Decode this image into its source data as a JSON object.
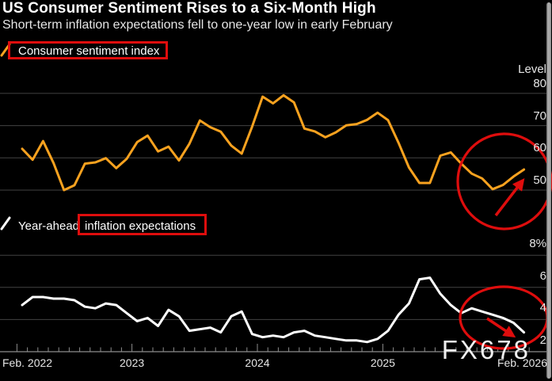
{
  "header": {
    "title": "US Consumer Sentiment Rises to a Six-Month High",
    "subtitle": "Short-term inflation expectations fell to one-year low in early February"
  },
  "legends": {
    "sentiment": {
      "label": "Consumer sentiment index"
    },
    "inflation": {
      "prefix": "Year-ahead",
      "boxed": "inflation expectations"
    }
  },
  "watermark": "FX678",
  "colors": {
    "background": "#000000",
    "sentiment_line": "#F9A21F",
    "inflation_line": "#FFFFFF",
    "grid": "#424242",
    "axis": "#8C8C8C",
    "annotation_red": "#DE0D0D",
    "text_primary": "#FFFFFF",
    "text_secondary": "#E6E6E6",
    "scrollbar": "#9A9A9A"
  },
  "chart_data": {
    "type": "line",
    "layout": "two stacked panels sharing one monthly x-axis",
    "grid": "horizontal gridlines only, black background",
    "legend_position": "above each panel",
    "x_tick_labels": [
      "Feb. 2022",
      "2023",
      "2024",
      "2025",
      "Feb. 2026"
    ],
    "categories": [
      "Feb 2022",
      "Mar 2022",
      "Apr 2022",
      "May 2022",
      "Jun 2022",
      "Jul 2022",
      "Aug 2022",
      "Sep 2022",
      "Oct 2022",
      "Nov 2022",
      "Dec 2022",
      "Jan 2023",
      "Feb 2023",
      "Mar 2023",
      "Apr 2023",
      "May 2023",
      "Jun 2023",
      "Jul 2023",
      "Aug 2023",
      "Sep 2023",
      "Oct 2023",
      "Nov 2023",
      "Dec 2023",
      "Jan 2024",
      "Feb 2024",
      "Mar 2024",
      "Apr 2024",
      "May 2024",
      "Jun 2024",
      "Jul 2024",
      "Aug 2024",
      "Sep 2024",
      "Oct 2024",
      "Nov 2024",
      "Dec 2024",
      "Jan 2025",
      "Feb 2025",
      "Mar 2025",
      "Apr 2025",
      "May 2025",
      "Jun 2025",
      "Jul 2025",
      "Aug 2025",
      "Sep 2025",
      "Oct 2025",
      "Nov 2025",
      "Dec 2025",
      "Jan 2026",
      "Feb 2026"
    ],
    "series": [
      {
        "name": "Consumer sentiment index",
        "panel": "top",
        "color": "#F9A21F",
        "ylabel": "Level",
        "ytick_labels": [
          "80",
          "70",
          "60",
          "50"
        ],
        "ytick_values": [
          80,
          70,
          60,
          50
        ],
        "ylim": [
          45,
          86
        ],
        "values": [
          62.8,
          59.4,
          65.2,
          58.4,
          50.0,
          51.5,
          58.2,
          58.6,
          59.9,
          56.8,
          59.7,
          64.9,
          66.9,
          62.0,
          63.5,
          59.2,
          64.4,
          71.6,
          69.5,
          68.1,
          63.8,
          61.3,
          69.7,
          79.0,
          76.9,
          79.4,
          77.2,
          69.1,
          68.2,
          66.4,
          67.9,
          70.1,
          70.5,
          71.8,
          74.0,
          71.7,
          64.7,
          57.0,
          52.2,
          52.2,
          60.7,
          61.7,
          58.2,
          55.1,
          53.6,
          50.3,
          51.6,
          54.2,
          56.4
        ],
        "annotation": {
          "shape": "red ellipse with red up-right arrow",
          "color": "#DE0D0D",
          "highlights": "late-2025 trough and rebound to six-month high"
        }
      },
      {
        "name": "Year-ahead inflation expectations",
        "panel": "bottom",
        "color": "#FFFFFF",
        "ylabel": "",
        "ytick_labels": [
          "8%",
          "6",
          "4",
          "2"
        ],
        "ytick_values": [
          8,
          6,
          4,
          2
        ],
        "ylim": [
          2,
          9
        ],
        "values": [
          4.9,
          5.4,
          5.4,
          5.3,
          5.3,
          5.2,
          4.8,
          4.7,
          5.0,
          4.9,
          4.4,
          3.9,
          4.1,
          3.6,
          4.6,
          4.2,
          3.3,
          3.4,
          3.5,
          3.2,
          4.2,
          4.5,
          3.1,
          2.9,
          3.0,
          2.9,
          3.2,
          3.3,
          3.0,
          2.9,
          2.8,
          2.7,
          2.7,
          2.6,
          2.8,
          3.3,
          4.3,
          5.0,
          6.5,
          6.6,
          5.6,
          4.9,
          4.4,
          4.7,
          4.5,
          4.3,
          4.1,
          3.8,
          3.2
        ],
        "annotation": {
          "shape": "red ellipse with red down-right arrow",
          "color": "#DE0D0D",
          "highlights": "decline to one-year low in early February"
        }
      }
    ]
  }
}
